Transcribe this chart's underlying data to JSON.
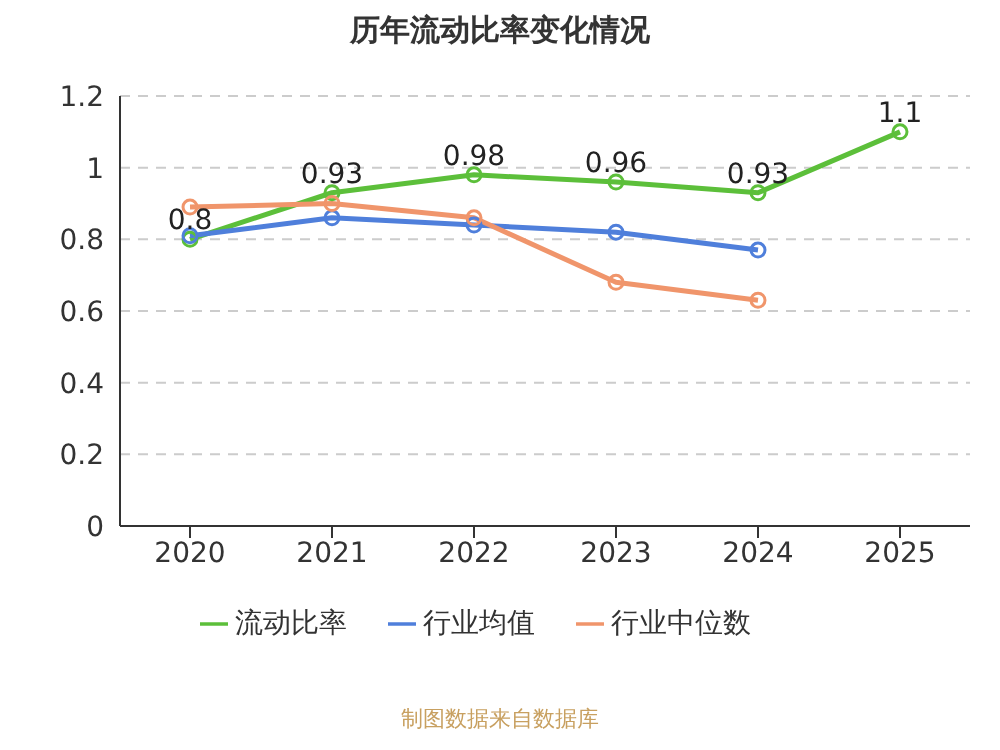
{
  "chart_data": {
    "type": "line",
    "title": "历年流动比率变化情况",
    "categories": [
      "2020",
      "2021",
      "2022",
      "2023",
      "2024",
      "2025"
    ],
    "series": [
      {
        "name": "流动比率",
        "color": "#5cbf3a",
        "values": [
          0.8,
          0.93,
          0.98,
          0.96,
          0.93,
          1.1
        ],
        "value_labels": [
          "0.8",
          "0.93",
          "0.98",
          "0.96",
          "0.93",
          "1.1"
        ]
      },
      {
        "name": "行业均值",
        "color": "#4f7fdb",
        "values": [
          0.81,
          0.86,
          0.84,
          0.82,
          0.77,
          null
        ]
      },
      {
        "name": "行业中位数",
        "color": "#f0956b",
        "values": [
          0.89,
          0.9,
          0.86,
          0.68,
          0.63,
          null
        ]
      }
    ],
    "ylim": [
      0,
      1.2
    ],
    "yticks": [
      0,
      0.2,
      0.4,
      0.6,
      0.8,
      1,
      1.2
    ],
    "grid": "y",
    "legend": "bottom",
    "marker": "circle",
    "annotations": [
      "制图数据来自数据库"
    ]
  }
}
